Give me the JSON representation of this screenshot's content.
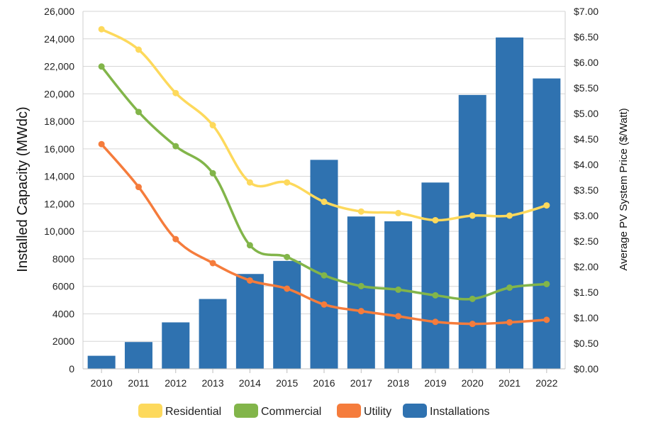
{
  "chart_data": {
    "type": "bar",
    "categories": [
      "2010",
      "2011",
      "2012",
      "2013",
      "2014",
      "2015",
      "2016",
      "2017",
      "2018",
      "2019",
      "2020",
      "2021",
      "2022"
    ],
    "ylabel_left": "Installed Capacity (MWdc)",
    "ylabel_right": "Average PV System Price ($/Watt)",
    "ylim_left": [
      0,
      26000
    ],
    "ylim_right": [
      0,
      7
    ],
    "left_ticks": [
      "0",
      "2000",
      "4000",
      "6000",
      "8000",
      "10,000",
      "12,000",
      "14,000",
      "16,000",
      "18,000",
      "20,000",
      "22,000",
      "24,000",
      "26,000"
    ],
    "right_ticks": [
      "$0.00",
      "$0.50",
      "$1.00",
      "$1.50",
      "$2.00",
      "$2.50",
      "$3.00",
      "$3.50",
      "$4.00",
      "$4.50",
      "$5.00",
      "$5.50",
      "$6.00",
      "$6.50",
      "$7.00"
    ],
    "grid": true,
    "legend_position": "bottom",
    "series": [
      {
        "name": "Installations",
        "type": "bar",
        "axis": "left",
        "color": "#2f72b0",
        "values": [
          950,
          1950,
          3380,
          5080,
          6900,
          7850,
          15200,
          11080,
          10730,
          13550,
          19920,
          24100,
          21120
        ]
      },
      {
        "name": "Residential",
        "type": "line",
        "axis": "right",
        "color": "#fdd95c",
        "values": [
          6.65,
          6.25,
          5.4,
          4.77,
          3.65,
          3.65,
          3.27,
          3.08,
          3.05,
          2.91,
          3.0,
          3.0,
          3.2
        ]
      },
      {
        "name": "Commercial",
        "type": "line",
        "axis": "right",
        "color": "#82b54a",
        "values": [
          5.92,
          5.03,
          4.36,
          3.83,
          2.42,
          2.19,
          1.83,
          1.62,
          1.55,
          1.44,
          1.37,
          1.59,
          1.66
        ]
      },
      {
        "name": "Utility",
        "type": "line",
        "axis": "right",
        "color": "#f57c3c",
        "values": [
          4.4,
          3.56,
          2.54,
          2.07,
          1.73,
          1.57,
          1.26,
          1.13,
          1.03,
          0.92,
          0.88,
          0.91,
          0.96
        ]
      }
    ],
    "legend_order": [
      "Residential",
      "Commercial",
      "Utility",
      "Installations"
    ]
  }
}
